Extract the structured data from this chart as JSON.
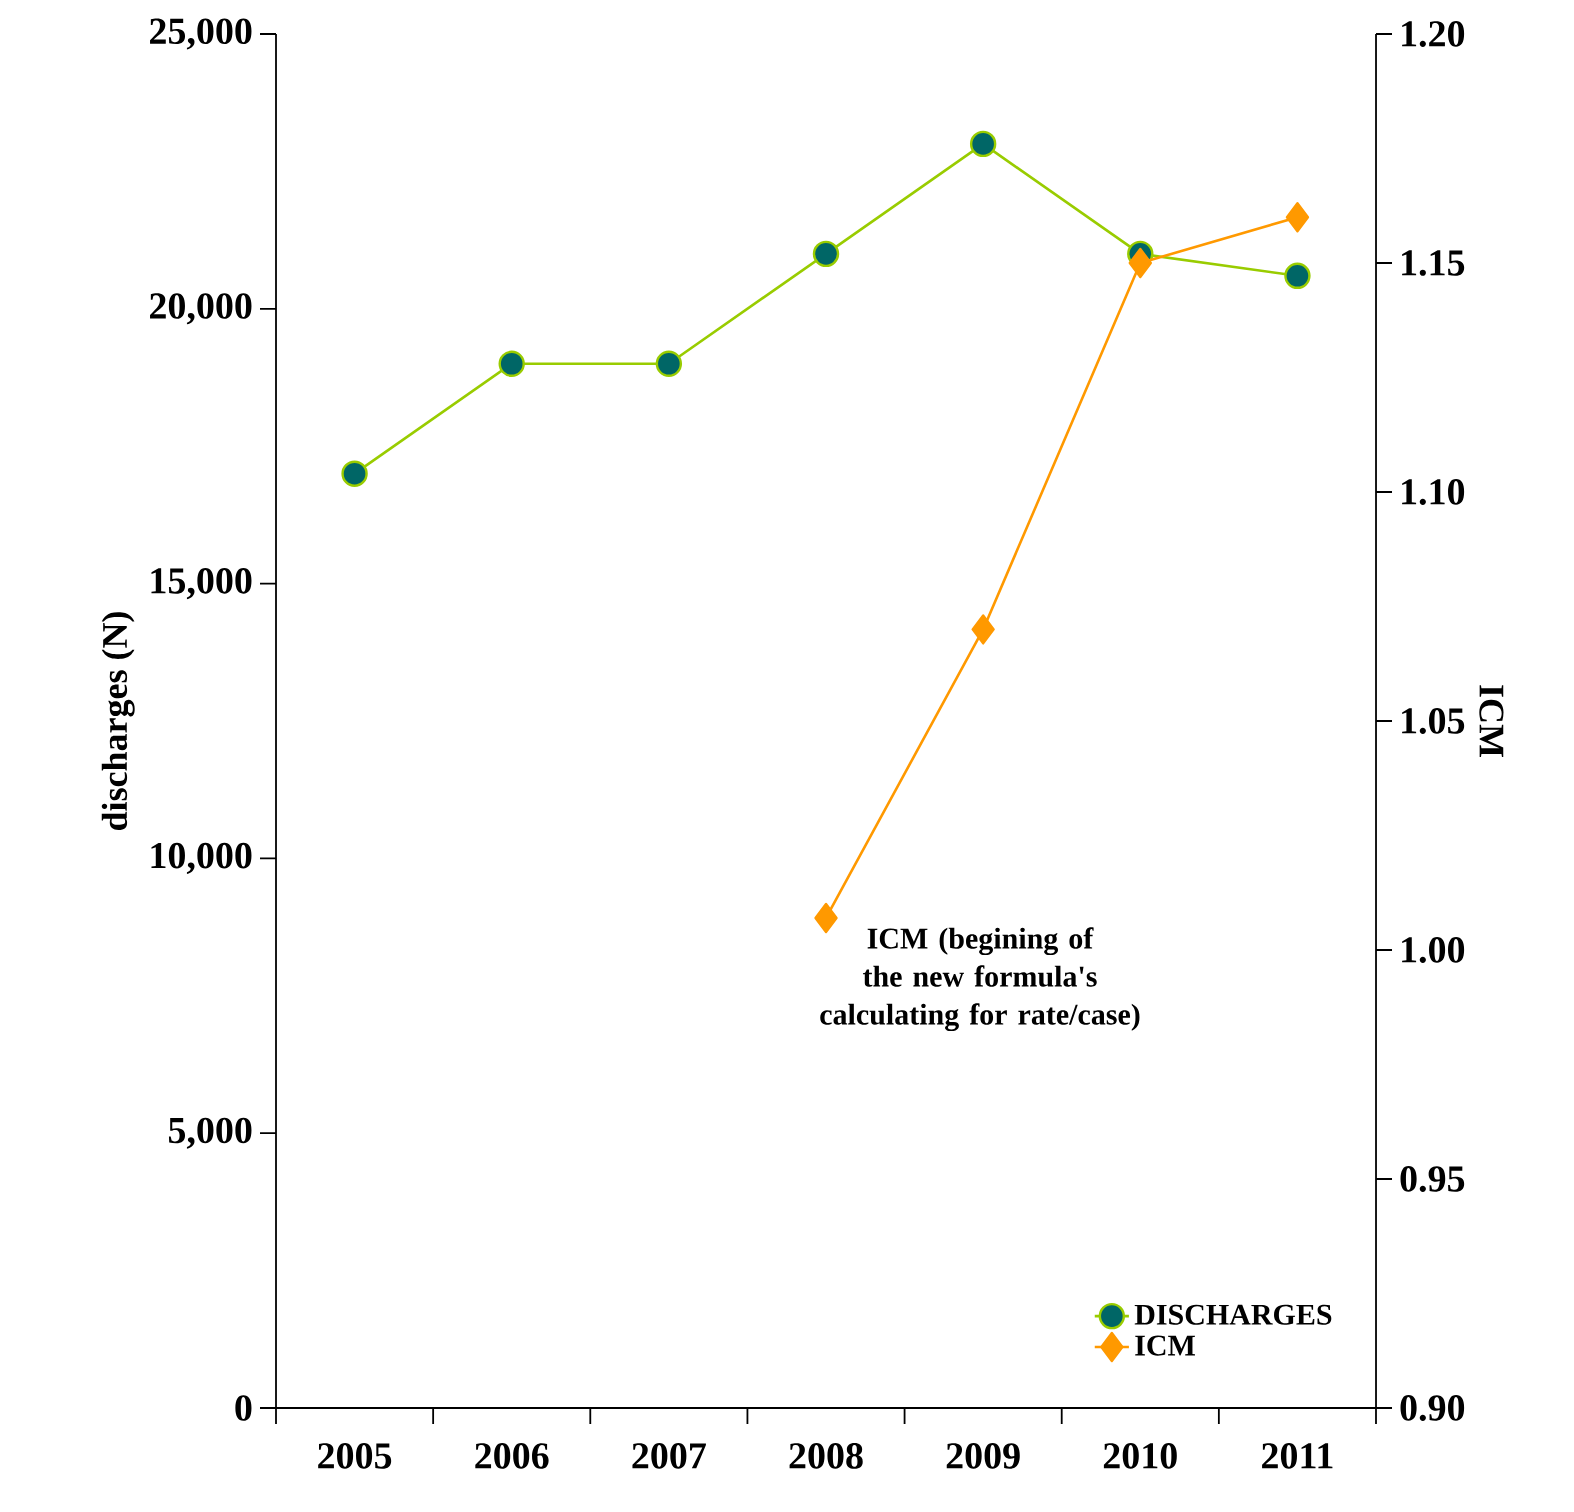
{
  "chart_data": {
    "type": "line",
    "categories": [
      "2005",
      "2006",
      "2007",
      "2008",
      "2009",
      "2010",
      "2011"
    ],
    "series": [
      {
        "name": "DISCHARGES",
        "color": "#99cc00",
        "marker": "circle",
        "values": [
          17000,
          19000,
          19000,
          21000,
          23000,
          21000,
          20600
        ]
      },
      {
        "name": "ICM",
        "color": "#ff9900",
        "marker": "diamond",
        "axis": "y2",
        "values": [
          null,
          null,
          null,
          1.007,
          1.07,
          1.15,
          1.16
        ]
      }
    ],
    "ylabel": "discharges (N)",
    "y2label": "ICM",
    "ylim": [
      0,
      25000
    ],
    "yticks": [
      0,
      {
        "value": 5000,
        "label": "5,000"
      },
      {
        "value": 10000,
        "label": "10,000"
      },
      {
        "value": 15000,
        "label": "15,000"
      },
      {
        "value": 20000,
        "label": "20,000"
      },
      {
        "value": 25000,
        "label": "25,000"
      }
    ],
    "y2lim": [
      0.9,
      1.2
    ],
    "y2ticks": [
      {
        "value": 0.9,
        "label": "0.90"
      },
      {
        "value": 0.95,
        "label": "0.95"
      },
      {
        "value": 1.0,
        "label": "1.00"
      },
      {
        "value": 1.05,
        "label": "1.05"
      },
      {
        "value": 1.1,
        "label": "1.10"
      },
      {
        "value": 1.15,
        "label": "1.15"
      },
      {
        "value": 1.2,
        "label": "1.20"
      }
    ],
    "annotations": [
      "ICM (begining of the new formula's calculating for rate/case)"
    ],
    "legend": "bottom right",
    "grid": false
  }
}
